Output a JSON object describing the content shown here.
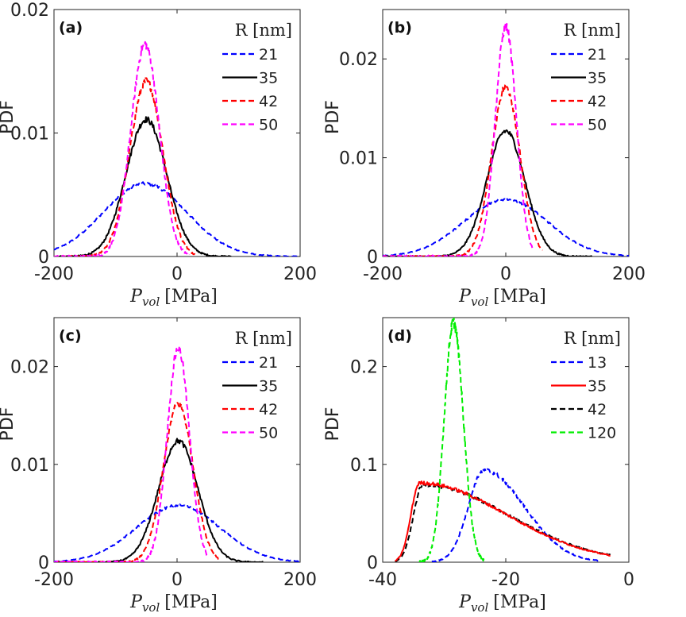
{
  "figure": {
    "background": "#ffffff"
  },
  "chart_data": [
    {
      "panel_label": "(a)",
      "type": "line",
      "xlabel": "P",
      "xlabel_sub": "vol",
      "xlabel_unit": "[MPa]",
      "ylabel": "PDF",
      "xlim": [
        -200,
        200
      ],
      "ylim": [
        0,
        0.02
      ],
      "xticks": [
        -200,
        0,
        200
      ],
      "xtick_labels": [
        "-200",
        "0",
        "200"
      ],
      "yticks": [
        0,
        0.01,
        0.02
      ],
      "ytick_labels": [
        "0",
        "0.01",
        "0.02"
      ],
      "legend_title": "R [nm]",
      "legend_location": "top-right",
      "series": [
        {
          "name": "21",
          "color": "#0000ff",
          "dash": "dashed",
          "mu": -52,
          "sigma": 68,
          "peak": 0.0059,
          "xmin": -200,
          "xmax": 200
        },
        {
          "name": "35",
          "color": "#000000",
          "dash": "solid",
          "mu": -50,
          "sigma": 33,
          "peak": 0.0111,
          "xmin": -200,
          "xmax": 88
        },
        {
          "name": "42",
          "color": "#ff0000",
          "dash": "dashed",
          "mu": -50,
          "sigma": 27,
          "peak": 0.0142,
          "xmin": -200,
          "xmax": 30
        },
        {
          "name": "50",
          "color": "#ff00ff",
          "dash": "dashed",
          "mu": -52,
          "sigma": 23,
          "peak": 0.0172,
          "xmin": -200,
          "xmax": 20
        }
      ]
    },
    {
      "panel_label": "(b)",
      "type": "line",
      "xlabel": "P",
      "xlabel_sub": "vol",
      "xlabel_unit": "[MPa]",
      "ylabel": "PDF",
      "xlim": [
        -200,
        200
      ],
      "ylim": [
        0,
        0.025
      ],
      "xticks": [
        -200,
        0,
        200
      ],
      "xtick_labels": [
        "-200",
        "0",
        "200"
      ],
      "yticks": [
        0,
        0.01,
        0.02
      ],
      "ytick_labels": [
        "0",
        "0.01",
        "0.02"
      ],
      "legend_title": "R [nm]",
      "legend_location": "top-right",
      "series": [
        {
          "name": "21",
          "color": "#0000ff",
          "dash": "dashed",
          "mu": 0,
          "sigma": 68,
          "peak": 0.0058,
          "xmin": -200,
          "xmax": 200
        },
        {
          "name": "35",
          "color": "#000000",
          "dash": "solid",
          "mu": 0,
          "sigma": 31,
          "peak": 0.0127,
          "xmin": -200,
          "xmax": 140
        },
        {
          "name": "42",
          "color": "#ff0000",
          "dash": "dashed",
          "mu": 0,
          "sigma": 23,
          "peak": 0.0172,
          "xmin": -200,
          "xmax": 60
        },
        {
          "name": "50",
          "color": "#ff00ff",
          "dash": "dashed",
          "mu": 0,
          "sigma": 17,
          "peak": 0.0233,
          "xmin": -200,
          "xmax": 45
        }
      ]
    },
    {
      "panel_label": "(c)",
      "type": "line",
      "xlabel": "P",
      "xlabel_sub": "vol",
      "xlabel_unit": "[MPa]",
      "ylabel": "PDF",
      "xlim": [
        -200,
        200
      ],
      "ylim": [
        0,
        0.025
      ],
      "xticks": [
        -200,
        0,
        200
      ],
      "xtick_labels": [
        "-200",
        "0",
        "200"
      ],
      "yticks": [
        0,
        0.01,
        0.02
      ],
      "ytick_labels": [
        "0",
        "0.01",
        "0.02"
      ],
      "legend_title": "R [nm]",
      "legend_location": "top-right",
      "series": [
        {
          "name": "21",
          "color": "#0000ff",
          "dash": "dashed",
          "mu": 2,
          "sigma": 68,
          "peak": 0.0058,
          "xmin": -200,
          "xmax": 200
        },
        {
          "name": "35",
          "color": "#000000",
          "dash": "solid",
          "mu": 2,
          "sigma": 32,
          "peak": 0.0124,
          "xmin": -200,
          "xmax": 140
        },
        {
          "name": "42",
          "color": "#ff0000",
          "dash": "dashed",
          "mu": 2,
          "sigma": 24,
          "peak": 0.0162,
          "xmin": -200,
          "xmax": 70
        },
        {
          "name": "50",
          "color": "#ff00ff",
          "dash": "dashed",
          "mu": 2,
          "sigma": 18,
          "peak": 0.0219,
          "xmin": -200,
          "xmax": 50
        }
      ]
    },
    {
      "panel_label": "(d)",
      "type": "line",
      "xlabel": "P",
      "xlabel_sub": "vol",
      "xlabel_unit": "[MPa]",
      "ylabel": "PDF",
      "xlim": [
        -40,
        0
      ],
      "ylim": [
        0,
        0.25
      ],
      "xticks": [
        -40,
        -20,
        0
      ],
      "xtick_labels": [
        "-40",
        "-20",
        "0"
      ],
      "yticks": [
        0,
        0.1,
        0.2
      ],
      "ytick_labels": [
        "0",
        "0.1",
        "0.2"
      ],
      "legend_title": "R [nm]",
      "legend_location": "top-right",
      "series": [
        {
          "name": "13",
          "color": "#0000ff",
          "dash": "dashed",
          "mode": "skew",
          "mu": -23.5,
          "peak": 0.094,
          "left_sigma": 2.6,
          "right_tau": 6.5,
          "xmin": -32,
          "xmax": -5
        },
        {
          "name": "35",
          "color": "#ff0000",
          "dash": "solid",
          "mode": "skew",
          "mu": -34,
          "peak": 0.081,
          "left_sigma": 1.4,
          "right_tau": 14,
          "xmin": -38,
          "xmax": -3
        },
        {
          "name": "42",
          "color": "#000000",
          "dash": "dashed",
          "mode": "skew",
          "mu": -33.5,
          "peak": 0.079,
          "left_sigma": 1.5,
          "right_tau": 14,
          "xmin": -38,
          "xmax": -3
        },
        {
          "name": "120",
          "color": "#00ee00",
          "dash": "dashed",
          "mode": "skew",
          "mu": -28.5,
          "peak": 0.245,
          "left_sigma": 1.5,
          "right_tau": 1.6,
          "xmin": -34,
          "xmax": -23.5
        }
      ]
    }
  ]
}
